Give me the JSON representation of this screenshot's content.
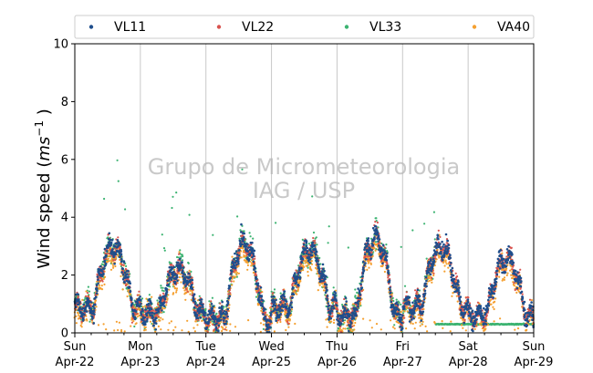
{
  "chart_data": {
    "type": "scatter",
    "title": "",
    "ylabel": "Wind speed (ms⁻¹ )",
    "ylabel_base": "Wind speed (",
    "ylabel_math": "ms",
    "ylabel_sup": "−1",
    "ylabel_end": " )",
    "xlabel": "",
    "ylim": [
      0,
      10
    ],
    "yticks": [
      "0",
      "2",
      "4",
      "6",
      "8",
      "10"
    ],
    "xlim_days": [
      "Sun Apr-22",
      "Sun Apr-29"
    ],
    "xticks": [
      {
        "day": "Sun",
        "date": "Apr-22"
      },
      {
        "day": "Mon",
        "date": "Apr-23"
      },
      {
        "day": "Tue",
        "date": "Apr-24"
      },
      {
        "day": "Wed",
        "date": "Apr-25"
      },
      {
        "day": "Thu",
        "date": "Apr-26"
      },
      {
        "day": "Fri",
        "date": "Apr-27"
      },
      {
        "day": "Sat",
        "date": "Apr-28"
      },
      {
        "day": "Sun",
        "date": "Apr-29"
      }
    ],
    "grid": "vertical",
    "legend": "top",
    "watermark": [
      "Grupo de Micrometeorologia",
      "IAG / USP"
    ],
    "series": [
      {
        "name": "VL11",
        "color": "#1f4e8c",
        "marker": "dot"
      },
      {
        "name": "VL22",
        "color": "#d9534f",
        "marker": "dot"
      },
      {
        "name": "VL33",
        "color": "#3cb371",
        "marker": "dot"
      },
      {
        "name": "VA40",
        "color": "#f5a030",
        "marker": "dot"
      }
    ],
    "daily_profile": {
      "description_days": [
        "Apr-22",
        "Apr-23",
        "Apr-24",
        "Apr-25",
        "Apr-26",
        "Apr-27",
        "Apr-28"
      ],
      "night_min": [
        0.9,
        0.7,
        0.5,
        0.9,
        0.6,
        0.9,
        0.6
      ],
      "afternoon_peak": [
        3.0,
        2.2,
        3.1,
        2.9,
        3.3,
        3.0,
        2.6
      ],
      "vl33_flat_after": "Apr-27 12:00",
      "vl33_flat_value": 0.3
    }
  }
}
